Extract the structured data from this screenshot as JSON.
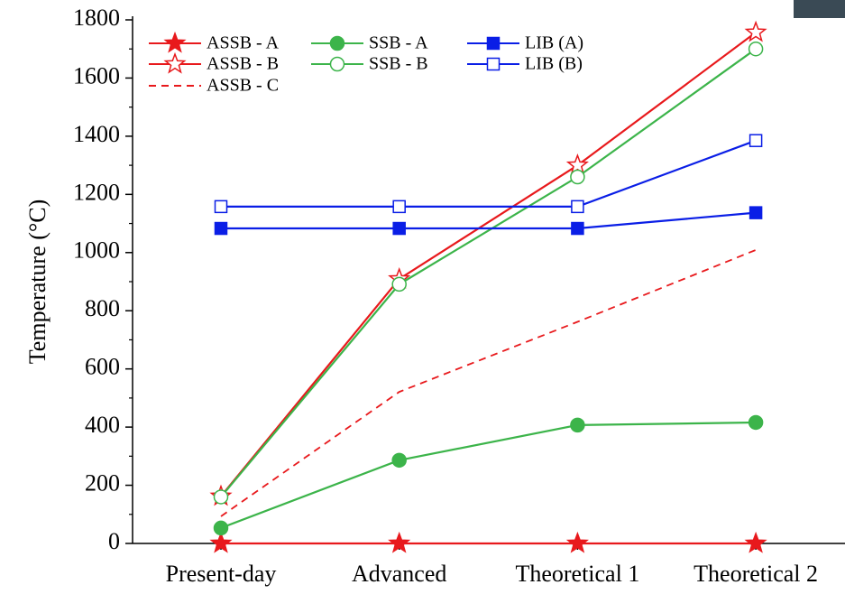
{
  "chart_data": {
    "type": "line",
    "y_label": "Temperature (°C)",
    "categories": [
      "Present-day",
      "Advanced",
      "Theoretical 1",
      "Theoretical 2"
    ],
    "series": [
      {
        "name": "ASSB - A",
        "color": "#e8191c",
        "marker": "star",
        "filled": true,
        "dashed": false,
        "values": [
          0,
          0,
          0,
          0
        ]
      },
      {
        "name": "ASSB - B",
        "color": "#e8191c",
        "marker": "star",
        "filled": false,
        "dashed": false,
        "values": [
          162,
          909,
          1300,
          1757
        ]
      },
      {
        "name": "ASSB - C",
        "color": "#e8191c",
        "marker": "none",
        "filled": false,
        "dashed": true,
        "values": [
          93,
          521,
          762,
          1009
        ]
      },
      {
        "name": "SSB - A",
        "color": "#3cb44a",
        "marker": "circle",
        "filled": true,
        "dashed": false,
        "values": [
          53,
          286,
          407,
          416
        ]
      },
      {
        "name": "SSB - B",
        "color": "#3cb44a",
        "marker": "circle",
        "filled": false,
        "dashed": false,
        "values": [
          160,
          891,
          1260,
          1700
        ]
      },
      {
        "name": "LIB (A)",
        "color": "#0a1ee6",
        "marker": "square",
        "filled": true,
        "dashed": false,
        "values": [
          1083,
          1083,
          1083,
          1137
        ]
      },
      {
        "name": "LIB (B)",
        "color": "#0a1ee6",
        "marker": "square",
        "filled": false,
        "dashed": false,
        "values": [
          1158,
          1158,
          1158,
          1385
        ]
      }
    ],
    "ylim": [
      0,
      1800
    ],
    "yticks": [
      0,
      200,
      400,
      600,
      800,
      1000,
      1200,
      1400,
      1600,
      1800
    ],
    "grid": false
  }
}
